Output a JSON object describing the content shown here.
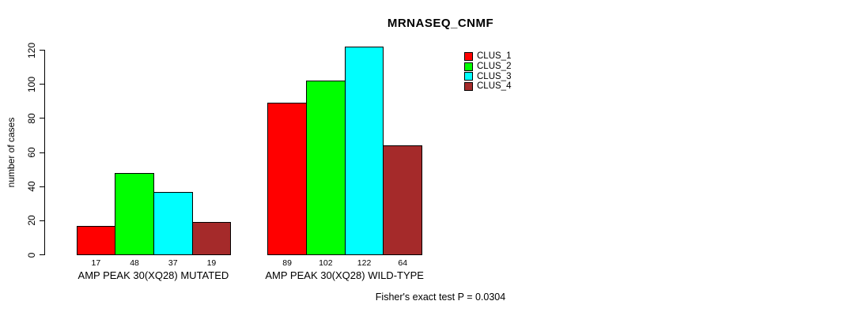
{
  "chart_data": {
    "type": "bar",
    "title": "MRNASEQ_CNMF",
    "ylabel": "number of cases",
    "ylim": [
      0,
      120
    ],
    "yticks": [
      0,
      20,
      40,
      60,
      80,
      100,
      120
    ],
    "grid": false,
    "legend_position": "top-right",
    "categories": [
      "AMP PEAK 30(XQ28) MUTATED",
      "AMP PEAK 30(XQ28) WILD-TYPE"
    ],
    "series": [
      {
        "name": "CLUS_1",
        "color": "#FF0000",
        "values": [
          17,
          89
        ]
      },
      {
        "name": "CLUS_2",
        "color": "#00FF00",
        "values": [
          48,
          102
        ]
      },
      {
        "name": "CLUS_3",
        "color": "#00FFFF",
        "values": [
          37,
          122
        ]
      },
      {
        "name": "CLUS_4",
        "color": "#A52A2A",
        "values": [
          19,
          64
        ]
      }
    ],
    "bar_value_labels": {
      "AMP PEAK 30(XQ28) MUTATED": [
        17,
        48,
        37,
        19
      ],
      "AMP PEAK 30(XQ28) WILD-TYPE": [
        89,
        102,
        122,
        64
      ]
    },
    "annotation": "Fisher's exact test P = 0.0304"
  },
  "colors": {
    "background": "#FFFFFF",
    "axis": "#000000",
    "text": "#000000"
  }
}
